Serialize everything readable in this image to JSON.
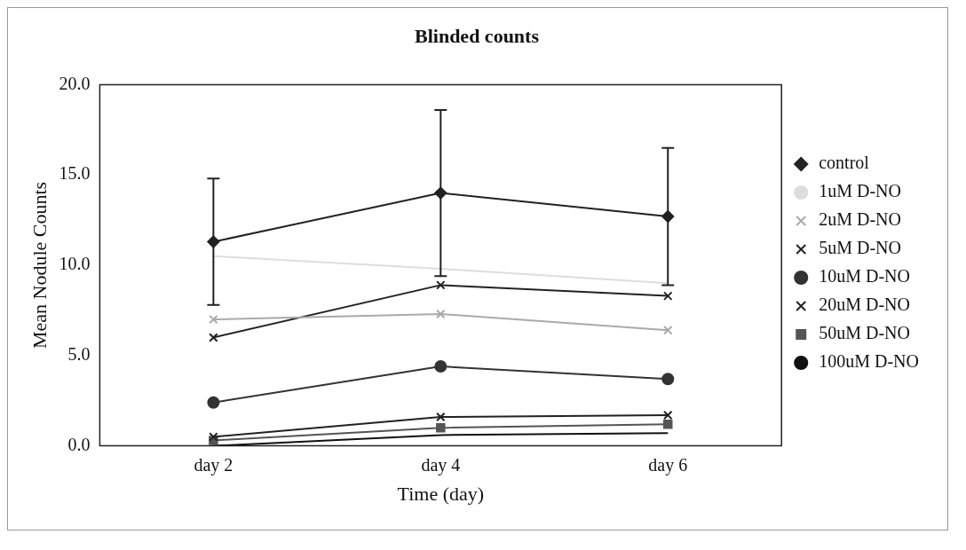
{
  "chart_data": {
    "type": "line",
    "title": "Blinded counts",
    "xlabel": "Time (day)",
    "ylabel": "Mean Nodule Counts",
    "categories": [
      "day 2",
      "day 4",
      "day 6"
    ],
    "ylim": [
      0,
      20
    ],
    "yticks": [
      {
        "value": 0,
        "label": "0.0"
      },
      {
        "value": 5,
        "label": "5.0"
      },
      {
        "value": 10,
        "label": "10.0"
      },
      {
        "value": 15,
        "label": "15.0"
      },
      {
        "value": 20,
        "label": "20.0"
      }
    ],
    "grid": false,
    "legend": "right",
    "series": [
      {
        "name": "control",
        "color": "#222222",
        "marker": "diamond",
        "values": [
          11.3,
          14.0,
          12.7
        ],
        "errors": [
          3.5,
          4.6,
          3.8
        ]
      },
      {
        "name": "1uM D-NO",
        "color": "#dddddd",
        "marker": "none",
        "values": [
          10.5,
          9.8,
          9.0
        ]
      },
      {
        "name": "2uM D-NO",
        "color": "#aaaaaa",
        "marker": "cross",
        "values": [
          7.0,
          7.3,
          6.4
        ]
      },
      {
        "name": "5uM D-NO",
        "color": "#222222",
        "marker": "cross",
        "values": [
          6.0,
          8.9,
          8.3
        ]
      },
      {
        "name": "10uM D-NO",
        "color": "#333333",
        "marker": "circle",
        "values": [
          2.4,
          4.4,
          3.7
        ]
      },
      {
        "name": "20uM D-NO",
        "color": "#222222",
        "marker": "cross",
        "values": [
          0.5,
          1.6,
          1.7
        ]
      },
      {
        "name": "50uM D-NO",
        "color": "#555555",
        "marker": "square",
        "values": [
          0.3,
          1.0,
          1.2
        ]
      },
      {
        "name": "100uM D-NO",
        "color": "#111111",
        "marker": "none",
        "values": [
          0.0,
          0.6,
          0.7
        ]
      }
    ]
  }
}
